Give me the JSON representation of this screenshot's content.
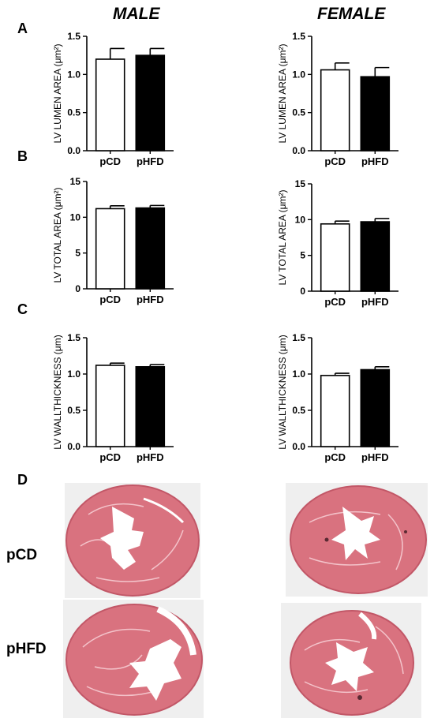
{
  "columns": {
    "male": "MALE",
    "female": "FEMALE"
  },
  "panel_letters": {
    "a": "A",
    "b": "B",
    "c": "C",
    "d": "D"
  },
  "histology": {
    "row_labels": [
      "pCD",
      "pHFD"
    ]
  },
  "colors": {
    "pCD_fill": "#ffffff",
    "pHFD_fill": "#000000",
    "tissue": "#d9727f",
    "tissue_dark": "#c25767",
    "background": "#eeeeee"
  },
  "chart_data": [
    {
      "id": "male-lumen",
      "type": "bar",
      "ylabel": "LV LUMEN AREA (μm²)",
      "categories": [
        "pCD",
        "pHFD"
      ],
      "values": [
        1.2,
        1.25
      ],
      "errors": [
        0.14,
        0.09
      ],
      "ylim": [
        0,
        1.5
      ],
      "yticks": [
        "0.0",
        "0.5",
        "1.0",
        "1.5"
      ],
      "ytick_values": [
        0,
        0.5,
        1.0,
        1.5
      ]
    },
    {
      "id": "female-lumen",
      "type": "bar",
      "ylabel": "LV LUMEN AREA (μm²)",
      "categories": [
        "pCD",
        "pHFD"
      ],
      "values": [
        1.06,
        0.97
      ],
      "errors": [
        0.09,
        0.12
      ],
      "ylim": [
        0,
        1.5
      ],
      "yticks": [
        "0.0",
        "0.5",
        "1.0",
        "1.5"
      ],
      "ytick_values": [
        0,
        0.5,
        1.0,
        1.5
      ]
    },
    {
      "id": "male-total",
      "type": "bar",
      "ylabel": "LV TOTAL AREA (μm²)",
      "categories": [
        "pCD",
        "pHFD"
      ],
      "values": [
        11.2,
        11.3
      ],
      "errors": [
        0.4,
        0.35
      ],
      "ylim": [
        0,
        15
      ],
      "yticks": [
        "0",
        "5",
        "10",
        "15"
      ],
      "ytick_values": [
        0,
        5,
        10,
        15
      ]
    },
    {
      "id": "female-total",
      "type": "bar",
      "ylabel": "LV TOTAL AREA (μm²)",
      "categories": [
        "pCD",
        "pHFD"
      ],
      "values": [
        9.4,
        9.7
      ],
      "errors": [
        0.4,
        0.45
      ],
      "ylim": [
        0,
        15
      ],
      "yticks": [
        "0",
        "5",
        "10",
        "15"
      ],
      "ytick_values": [
        0,
        5,
        10,
        15
      ]
    },
    {
      "id": "male-wall",
      "type": "bar",
      "ylabel": "LV WALLTHICKNESS (μm)",
      "categories": [
        "pCD",
        "pHFD"
      ],
      "values": [
        1.12,
        1.1
      ],
      "errors": [
        0.03,
        0.03
      ],
      "ylim": [
        0,
        1.5
      ],
      "yticks": [
        "0.0",
        "0.5",
        "1.0",
        "1.5"
      ],
      "ytick_values": [
        0,
        0.5,
        1.0,
        1.5
      ]
    },
    {
      "id": "female-wall",
      "type": "bar",
      "ylabel": "LV WALLTHICKNESS (μm)",
      "categories": [
        "pCD",
        "pHFD"
      ],
      "values": [
        0.98,
        1.06
      ],
      "errors": [
        0.03,
        0.04
      ],
      "ylim": [
        0,
        1.5
      ],
      "yticks": [
        "0.0",
        "0.5",
        "1.0",
        "1.5"
      ],
      "ytick_values": [
        0,
        0.5,
        1.0,
        1.5
      ]
    }
  ]
}
